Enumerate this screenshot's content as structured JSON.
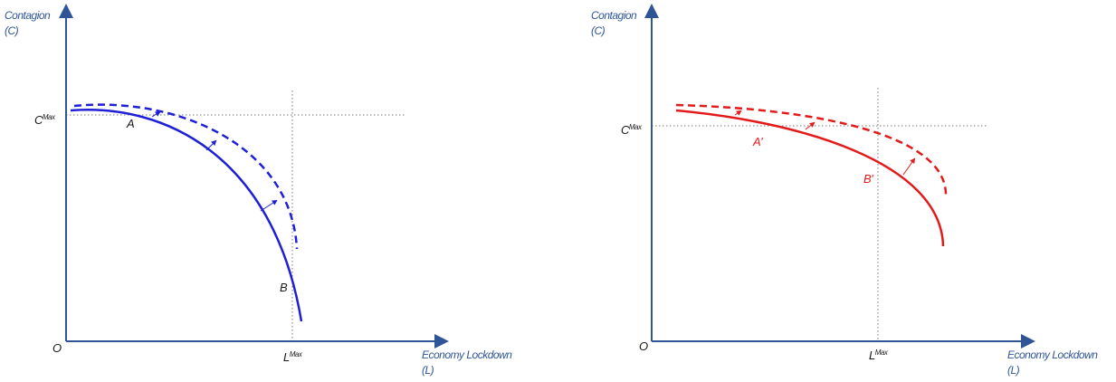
{
  "panels": [
    {
      "y_axis_label": "Contagion",
      "y_axis_unit": "(C)",
      "c_max": {
        "base": "C",
        "sup": "Max"
      },
      "origin": "O",
      "l_max": {
        "base": "L",
        "sup": "Max"
      },
      "x_axis_label": "Economy Lockdown",
      "x_axis_unit": "(L)",
      "point_a": "A",
      "point_b": "B"
    },
    {
      "y_axis_label": "Contagion",
      "y_axis_unit": "(C)",
      "c_max": {
        "base": "C",
        "sup": "Max"
      },
      "origin": "O",
      "l_max": {
        "base": "L",
        "sup": "Max"
      },
      "x_axis_label": "Economy Lockdown",
      "x_axis_unit": "(L)",
      "point_a": "A'",
      "point_b": "B'"
    }
  ]
}
